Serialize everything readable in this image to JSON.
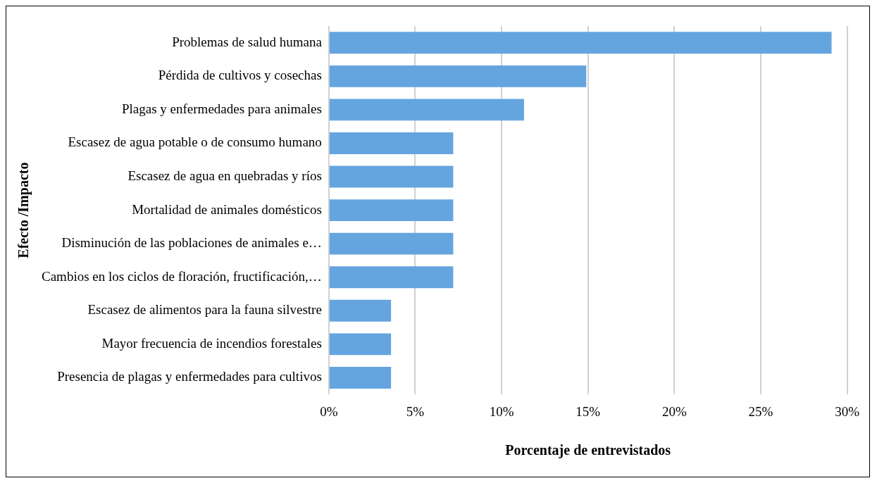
{
  "chart_data": {
    "type": "bar",
    "orientation": "horizontal",
    "xlabel": "Porcentaje de entrevistados",
    "ylabel": "Efecto /Impacto",
    "categories": [
      "Problemas de salud humana",
      "Pérdida de cultivos y cosechas",
      "Plagas y enfermedades para animales",
      "Escasez de agua potable o de consumo humano",
      "Escasez de agua en quebradas y ríos",
      "Mortalidad de animales domésticos",
      "Disminución de las poblaciones de animales e…",
      "Cambios en los ciclos de floración, fructificación,…",
      "Escasez de alimentos para la fauna silvestre",
      "Mayor frecuencia de incendios forestales",
      "Presencia de plagas y enfermedades para cultivos"
    ],
    "values": [
      29.1,
      14.9,
      11.3,
      7.2,
      7.2,
      7.2,
      7.2,
      7.2,
      3.6,
      3.6,
      3.6
    ],
    "color": "#64a5e0",
    "xlim": [
      0,
      30
    ],
    "xticks": [
      {
        "value": 0,
        "label": "0%"
      },
      {
        "value": 5,
        "label": "5%"
      },
      {
        "value": 10,
        "label": "10%"
      },
      {
        "value": 15,
        "label": "15%"
      },
      {
        "value": 20,
        "label": "20%"
      },
      {
        "value": 25,
        "label": "25%"
      },
      {
        "value": 30,
        "label": "30%"
      }
    ],
    "grid": "x",
    "legend": false
  }
}
